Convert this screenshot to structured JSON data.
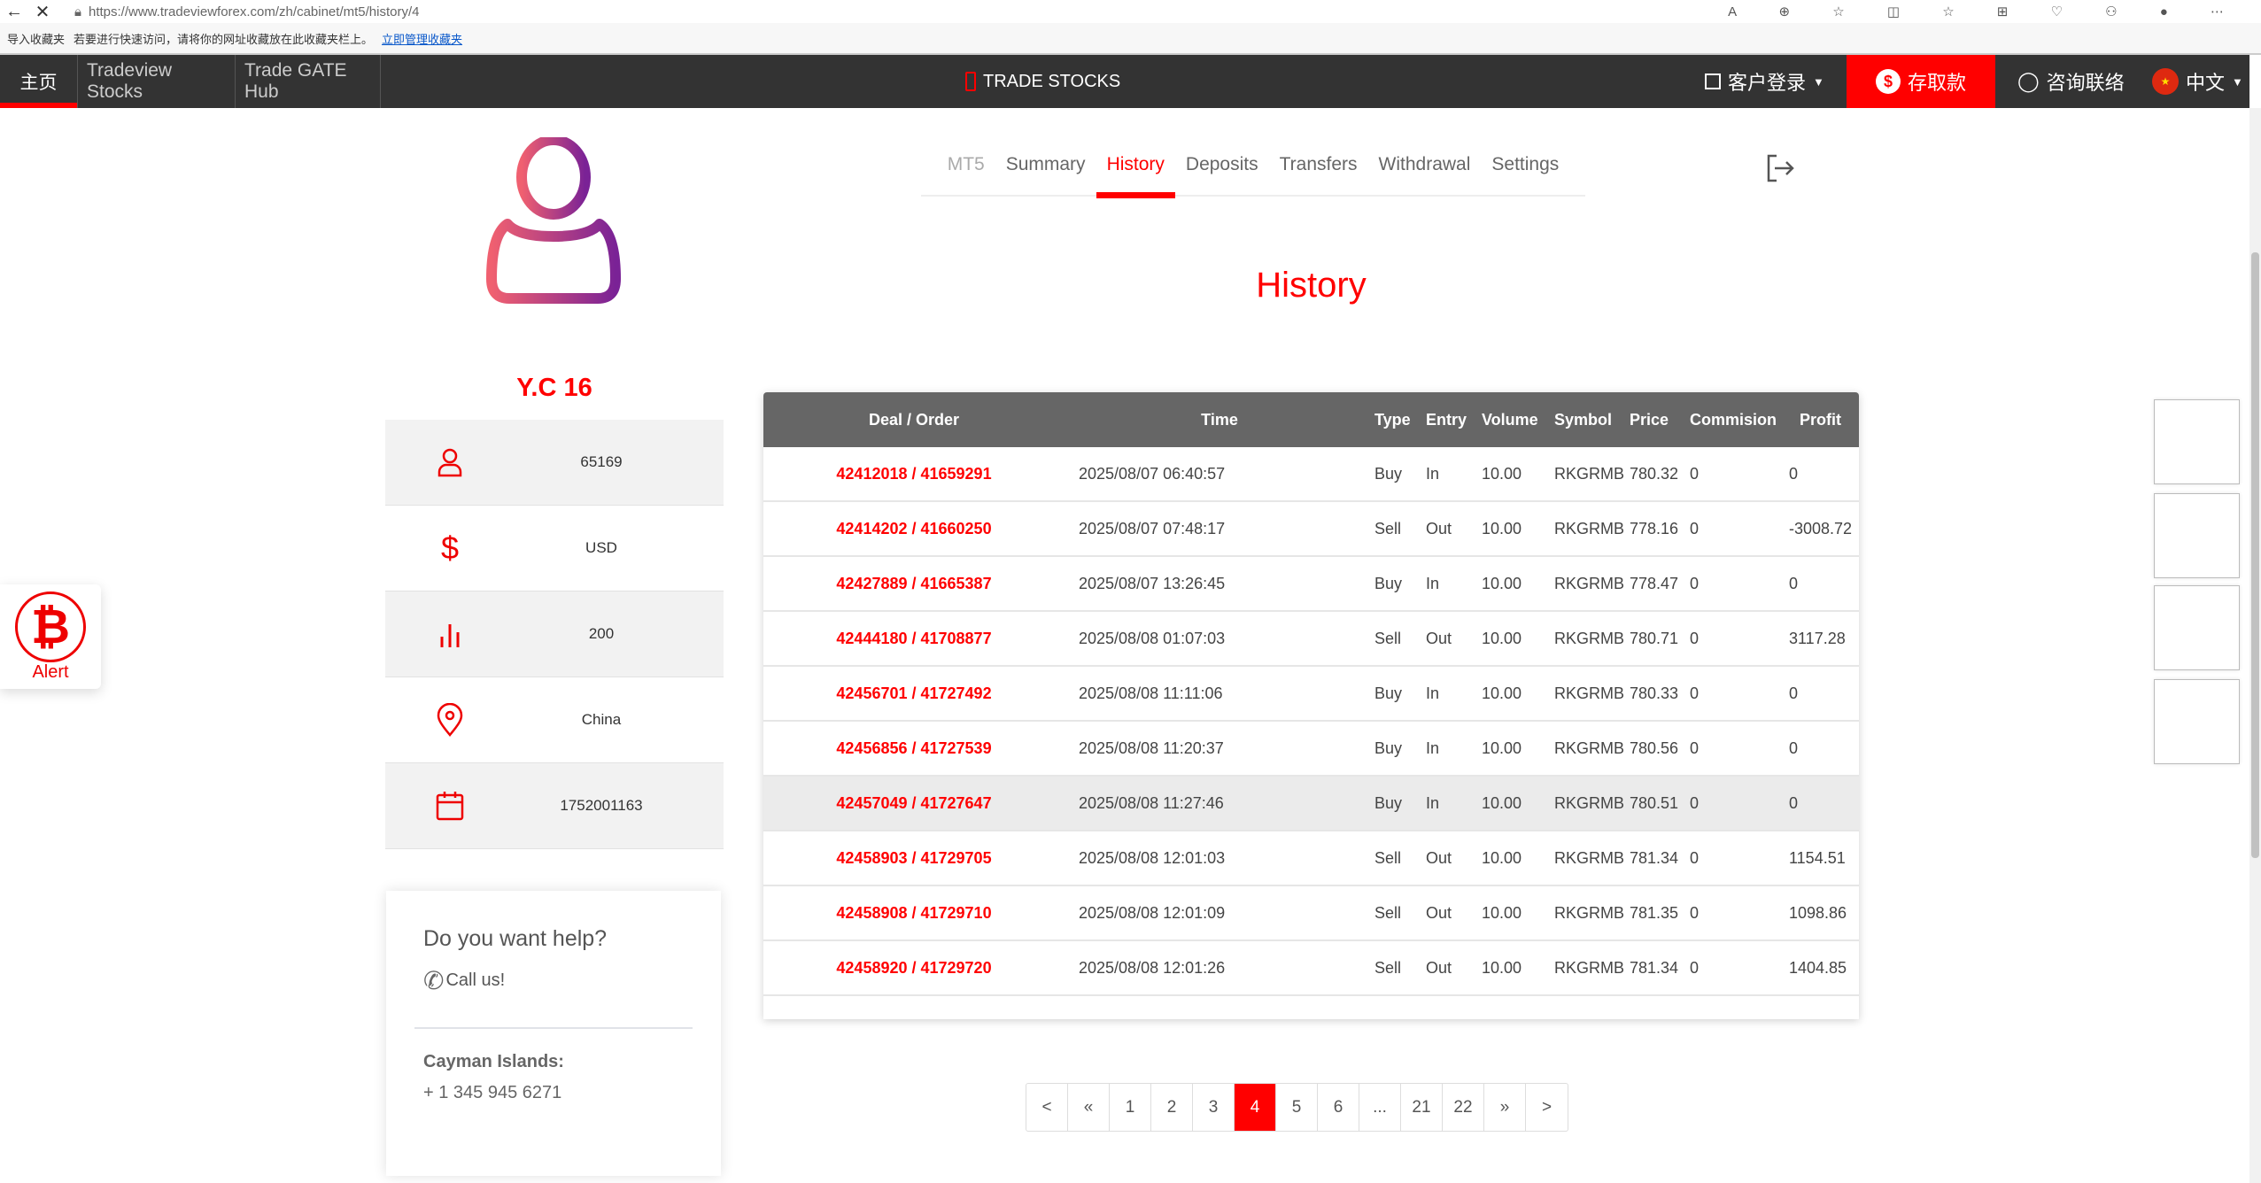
{
  "browser": {
    "url": "https://www.tradeviewforex.com/zh/cabinet/mt5/history/4",
    "bookmarks_import": "导入收藏夹",
    "bookmarks_hint": "若要进行快速访问，请将你的网址收藏放在此收藏夹栏上。",
    "bookmarks_link": "立即管理收藏夹"
  },
  "nav": {
    "items": [
      {
        "label": "主页",
        "active": true
      },
      {
        "label": "Tradeview Stocks"
      },
      {
        "label": "Trade GATE Hub"
      }
    ],
    "center": "TRADE STOCKS",
    "login": "客户登录",
    "deposit": "存取款",
    "contact": "咨询联络",
    "language": "中文"
  },
  "profile": {
    "name": "Y.C 16",
    "rows": [
      {
        "icon": "user-icon",
        "value": "65169"
      },
      {
        "icon": "dollar-icon",
        "value": "USD"
      },
      {
        "icon": "bar-chart-icon",
        "value": "200"
      },
      {
        "icon": "location-icon",
        "value": "China"
      },
      {
        "icon": "calendar-icon",
        "value": "1752001163"
      }
    ]
  },
  "help": {
    "title": "Do you want help?",
    "call": "Call us!",
    "location": "Cayman Islands:",
    "phone": "+ 1 345 945 6271"
  },
  "alert": {
    "label": "Alert"
  },
  "tabs": [
    {
      "label": "MT5"
    },
    {
      "label": "Summary"
    },
    {
      "label": "History",
      "active": true
    },
    {
      "label": "Deposits"
    },
    {
      "label": "Transfers"
    },
    {
      "label": "Withdrawal"
    },
    {
      "label": "Settings"
    }
  ],
  "page_title": "History",
  "table": {
    "headers": [
      "Deal / Order",
      "Time",
      "Type",
      "Entry",
      "Volume",
      "Symbol",
      "Price",
      "Commision",
      "Profit"
    ],
    "rows": [
      [
        "42412018 / 41659291",
        "2025/08/07 06:40:57",
        "Buy",
        "In",
        "10.00",
        "RKGRMB",
        "780.32",
        "0",
        "0"
      ],
      [
        "42414202 / 41660250",
        "2025/08/07 07:48:17",
        "Sell",
        "Out",
        "10.00",
        "RKGRMB",
        "778.16",
        "0",
        "-3008.72"
      ],
      [
        "42427889 / 41665387",
        "2025/08/07 13:26:45",
        "Buy",
        "In",
        "10.00",
        "RKGRMB",
        "778.47",
        "0",
        "0"
      ],
      [
        "42444180 / 41708877",
        "2025/08/08 01:07:03",
        "Sell",
        "Out",
        "10.00",
        "RKGRMB",
        "780.71",
        "0",
        "3117.28"
      ],
      [
        "42456701 / 41727492",
        "2025/08/08 11:11:06",
        "Buy",
        "In",
        "10.00",
        "RKGRMB",
        "780.33",
        "0",
        "0"
      ],
      [
        "42456856 / 41727539",
        "2025/08/08 11:20:37",
        "Buy",
        "In",
        "10.00",
        "RKGRMB",
        "780.56",
        "0",
        "0"
      ],
      [
        "42457049 / 41727647",
        "2025/08/08 11:27:46",
        "Buy",
        "In",
        "10.00",
        "RKGRMB",
        "780.51",
        "0",
        "0"
      ],
      [
        "42458903 / 41729705",
        "2025/08/08 12:01:03",
        "Sell",
        "Out",
        "10.00",
        "RKGRMB",
        "781.34",
        "0",
        "1154.51"
      ],
      [
        "42458908 / 41729710",
        "2025/08/08 12:01:09",
        "Sell",
        "Out",
        "10.00",
        "RKGRMB",
        "781.35",
        "0",
        "1098.86"
      ],
      [
        "42458920 / 41729720",
        "2025/08/08 12:01:26",
        "Sell",
        "Out",
        "10.00",
        "RKGRMB",
        "781.34",
        "0",
        "1404.85"
      ]
    ],
    "highlighted_row": 6
  },
  "pagination": {
    "items": [
      "<",
      "«",
      "1",
      "2",
      "3",
      "4",
      "5",
      "6",
      "...",
      "21",
      "22",
      "»",
      ">"
    ],
    "current": "4"
  },
  "colors": {
    "accent": "#ff0000",
    "navbar": "#333333",
    "table_header": "#666666"
  }
}
